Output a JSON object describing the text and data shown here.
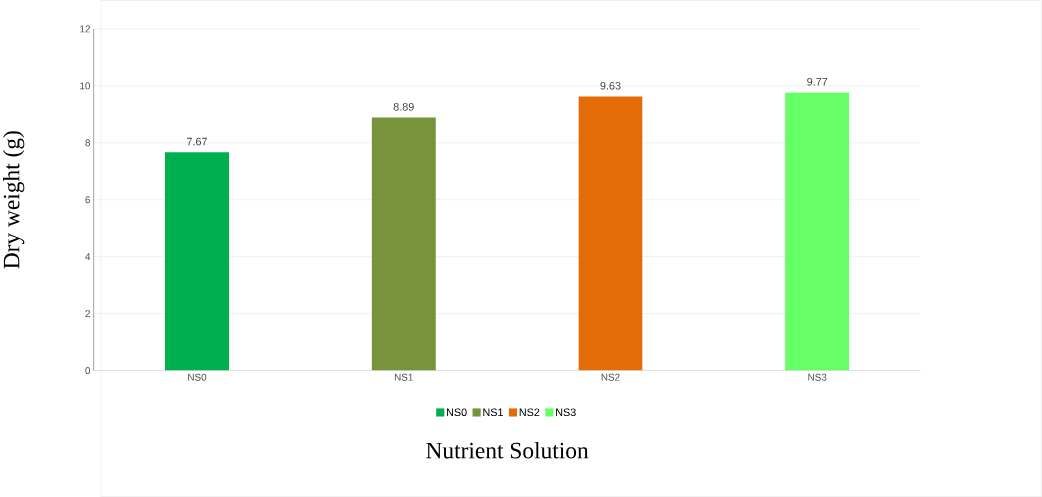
{
  "chart_data": {
    "type": "bar",
    "xlabel": "Nutrient Solution",
    "ylabel": "Dry weight (g)",
    "categories": [
      "NS0",
      "NS1",
      "NS2",
      "NS3"
    ],
    "series": [
      {
        "name": "NS0",
        "color": "#00b050",
        "values": [
          7.67,
          null,
          null,
          null
        ]
      },
      {
        "name": "NS1",
        "color": "#77933c",
        "values": [
          null,
          8.89,
          null,
          null
        ]
      },
      {
        "name": "NS2",
        "color": "#e36c09",
        "values": [
          null,
          null,
          9.63,
          null
        ]
      },
      {
        "name": "NS3",
        "color": "#66ff66",
        "values": [
          null,
          null,
          null,
          9.77
        ]
      }
    ],
    "ylim": [
      0,
      12
    ],
    "yticks": [
      0,
      2,
      4,
      6,
      8,
      10,
      12
    ],
    "grid": "y",
    "legend": "bottom",
    "data_labels": true
  }
}
